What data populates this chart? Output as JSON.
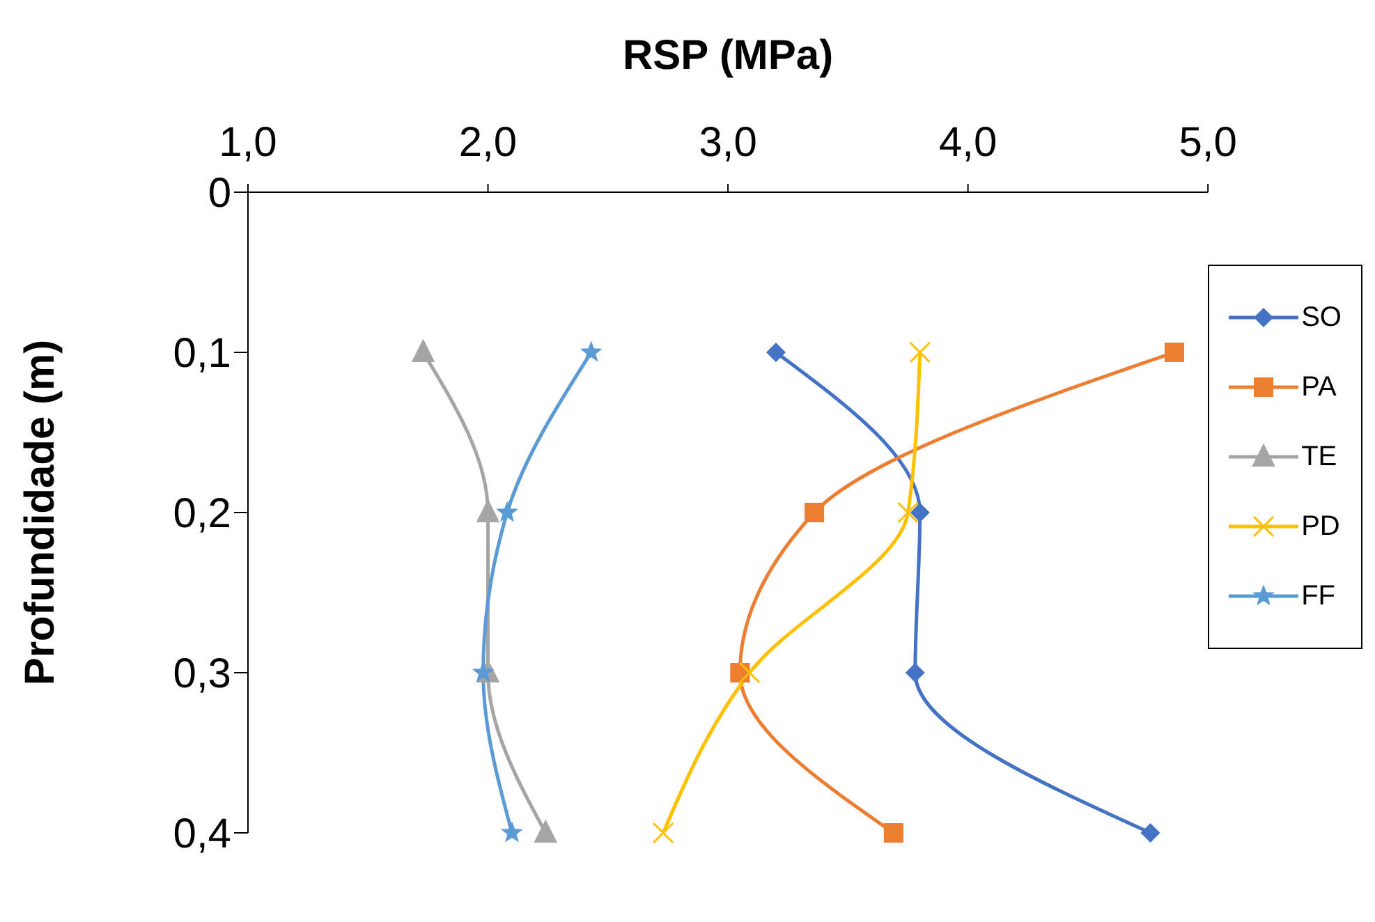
{
  "chart_data": {
    "type": "line",
    "xlabel": "RSP (MPa)",
    "ylabel": "Profundidade (m)",
    "xlim": [
      1,
      5
    ],
    "xticks": [
      {
        "value": 1,
        "label": "1,0"
      },
      {
        "value": 2,
        "label": "2,0"
      },
      {
        "value": 3,
        "label": "3,0"
      },
      {
        "value": 4,
        "label": "4,0"
      },
      {
        "value": 5,
        "label": "5,0"
      }
    ],
    "ylim": [
      0.4,
      0
    ],
    "yticks": [
      0,
      {
        "value": 0.1,
        "label": "0,1"
      },
      {
        "value": 0.2,
        "label": "0,2"
      },
      {
        "value": 0.3,
        "label": "0,3"
      },
      {
        "value": 0.4,
        "label": "0,4"
      }
    ],
    "grid": false,
    "legend": "right",
    "line_style": "solid",
    "series": [
      {
        "name": "SO",
        "color": "#4472c4",
        "marker": "diamond",
        "x": [
          3.2,
          3.8,
          3.78,
          4.76
        ],
        "values": [
          0.1,
          0.2,
          0.3,
          0.4
        ]
      },
      {
        "name": "PA",
        "color": "#ed7d31",
        "marker": "square",
        "x": [
          4.86,
          3.36,
          3.05,
          3.69
        ],
        "values": [
          0.1,
          0.2,
          0.3,
          0.4
        ]
      },
      {
        "name": "TE",
        "color": "#a5a5a5",
        "marker": "triangle",
        "x": [
          1.73,
          2.0,
          2.0,
          2.24
        ],
        "values": [
          0.1,
          0.2,
          0.3,
          0.4
        ]
      },
      {
        "name": "PD",
        "color": "#ffc000",
        "marker": "cross",
        "x": [
          3.8,
          3.75,
          3.09,
          2.73
        ],
        "values": [
          0.1,
          0.2,
          0.3,
          0.4
        ]
      },
      {
        "name": "FF",
        "color": "#5b9bd5",
        "marker": "star",
        "x": [
          2.43,
          2.08,
          1.98,
          2.1
        ],
        "values": [
          0.1,
          0.2,
          0.3,
          0.4
        ]
      }
    ]
  }
}
